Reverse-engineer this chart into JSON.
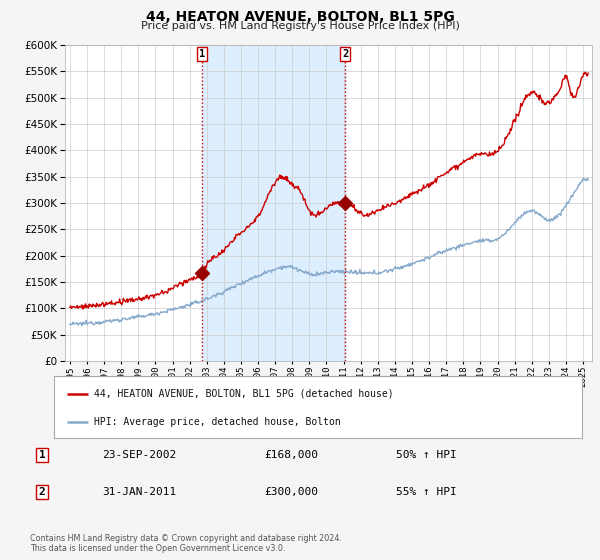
{
  "title": "44, HEATON AVENUE, BOLTON, BL1 5PG",
  "subtitle": "Price paid vs. HM Land Registry's House Price Index (HPI)",
  "ylim": [
    0,
    600000
  ],
  "yticks": [
    0,
    50000,
    100000,
    150000,
    200000,
    250000,
    300000,
    350000,
    400000,
    450000,
    500000,
    550000,
    600000
  ],
  "xlim_start": 1994.7,
  "xlim_end": 2025.5,
  "bg_color": "#f5f5f5",
  "plot_bg_color": "#ffffff",
  "grid_color": "#cccccc",
  "red_line_color": "#cc0000",
  "blue_line_color": "#88aacc",
  "sale1_x": 2002.727,
  "sale1_y": 168000,
  "sale2_x": 2011.083,
  "sale2_y": 300000,
  "vline_color": "#cc0000",
  "sale_marker_color": "#990000",
  "sale_marker_size": 7,
  "legend1_label": "44, HEATON AVENUE, BOLTON, BL1 5PG (detached house)",
  "legend2_label": "HPI: Average price, detached house, Bolton",
  "annotation1_label": "1",
  "annotation2_label": "2",
  "table_row1": [
    "1",
    "23-SEP-2002",
    "£168,000",
    "50% ↑ HPI"
  ],
  "table_row2": [
    "2",
    "31-JAN-2011",
    "£300,000",
    "55% ↑ HPI"
  ],
  "footnote": "Contains HM Land Registry data © Crown copyright and database right 2024.\nThis data is licensed under the Open Government Licence v3.0.",
  "shaded_region_color": "#ddeeff"
}
